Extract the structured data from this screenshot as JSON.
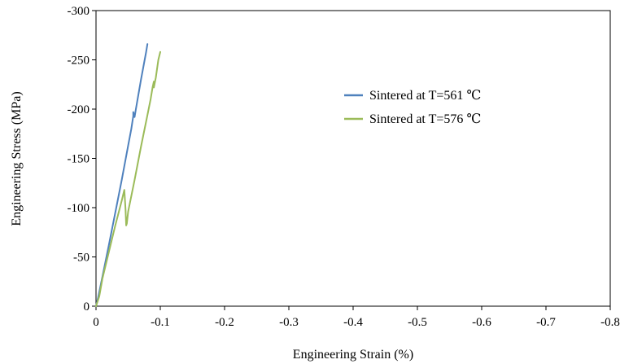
{
  "chart_data": {
    "type": "line",
    "title": "",
    "xlabel": "Engineering Strain (%)",
    "ylabel": "Engineering Stress (MPa)",
    "xlim": [
      0,
      -0.8
    ],
    "ylim": [
      0,
      -300
    ],
    "x_ticks": [
      0,
      -0.1,
      -0.2,
      -0.3,
      -0.4,
      -0.5,
      -0.6,
      -0.7,
      -0.8
    ],
    "x_tick_labels": [
      "0",
      "-0.1",
      "-0.2",
      "-0.3",
      "-0.4",
      "-0.5",
      "-0.6",
      "-0.7",
      "-0.8"
    ],
    "y_ticks": [
      0,
      -50,
      -100,
      -150,
      -200,
      -250,
      -300
    ],
    "y_tick_labels": [
      "0",
      "-50",
      "-100",
      "-150",
      "-200",
      "-250",
      "-300"
    ],
    "grid": false,
    "legend_position": "right-center",
    "series": [
      {
        "name": "Sintered at T=561 ℃",
        "color": "#4f81bd",
        "points": [
          [
            0,
            0
          ],
          [
            -0.003,
            -8
          ],
          [
            -0.01,
            -30
          ],
          [
            -0.02,
            -62
          ],
          [
            -0.03,
            -95
          ],
          [
            -0.04,
            -128
          ],
          [
            -0.05,
            -163
          ],
          [
            -0.055,
            -180
          ],
          [
            -0.058,
            -193
          ],
          [
            -0.058,
            -197
          ],
          [
            -0.06,
            -192
          ],
          [
            -0.062,
            -200
          ],
          [
            -0.07,
            -230
          ],
          [
            -0.078,
            -258
          ],
          [
            -0.08,
            -266
          ]
        ]
      },
      {
        "name": "Sintered at T=576 ℃",
        "color": "#9bbb59",
        "points": [
          [
            0,
            0
          ],
          [
            -0.005,
            -10
          ],
          [
            -0.01,
            -28
          ],
          [
            -0.02,
            -55
          ],
          [
            -0.03,
            -82
          ],
          [
            -0.04,
            -107
          ],
          [
            -0.044,
            -118
          ],
          [
            -0.046,
            -98
          ],
          [
            -0.047,
            -82
          ],
          [
            -0.048,
            -84
          ],
          [
            -0.05,
            -96
          ],
          [
            -0.06,
            -128
          ],
          [
            -0.07,
            -162
          ],
          [
            -0.08,
            -194
          ],
          [
            -0.085,
            -210
          ],
          [
            -0.088,
            -222
          ],
          [
            -0.09,
            -228
          ],
          [
            -0.09,
            -222
          ],
          [
            -0.093,
            -232
          ],
          [
            -0.097,
            -250
          ],
          [
            -0.1,
            -258
          ]
        ]
      }
    ]
  }
}
